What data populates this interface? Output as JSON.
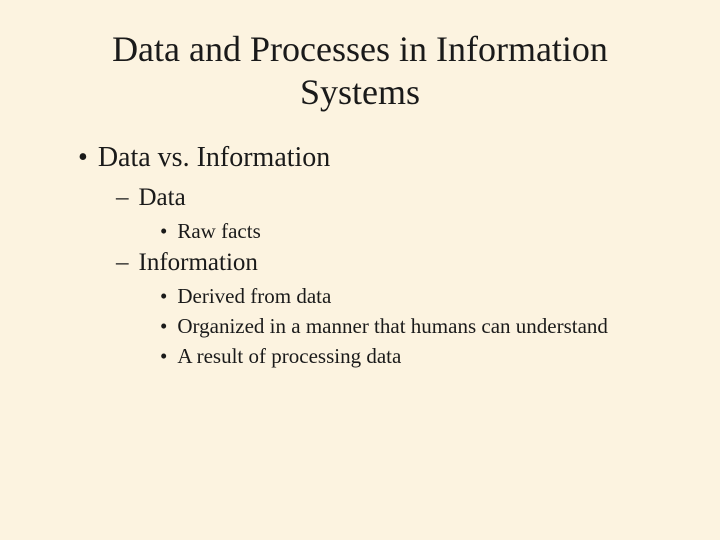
{
  "colors": {
    "background": "#fcf3e0",
    "text": "#1a1a1a"
  },
  "typography": {
    "title_fontsize": 36,
    "level1_fontsize": 28,
    "level2_fontsize": 25,
    "level3_fontsize": 21
  },
  "title": "Data and Processes in Information Systems",
  "outline": {
    "level1": {
      "bullet": "•",
      "text": "Data vs. Information"
    },
    "level2_a": {
      "dash": "–",
      "text": "Data"
    },
    "level3_a1": {
      "bullet": "•",
      "text": "Raw facts"
    },
    "level2_b": {
      "dash": "–",
      "text": "Information"
    },
    "level3_b1": {
      "bullet": "•",
      "text": "Derived from data"
    },
    "level3_b2": {
      "bullet": "•",
      "text": "Organized in a manner that humans can understand"
    },
    "level3_b3": {
      "bullet": "•",
      "text": "A result of processing data"
    }
  }
}
